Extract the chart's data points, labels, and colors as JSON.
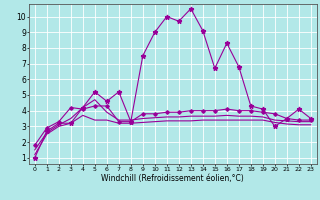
{
  "bg_color": "#b2e8e8",
  "grid_color": "#ffffff",
  "line_color": "#990099",
  "xlim": [
    -0.5,
    23.5
  ],
  "ylim": [
    0.6,
    10.8
  ],
  "xticks": [
    0,
    1,
    2,
    3,
    4,
    5,
    6,
    7,
    8,
    9,
    10,
    11,
    12,
    13,
    14,
    15,
    16,
    17,
    18,
    19,
    20,
    21,
    22,
    23
  ],
  "yticks": [
    1,
    2,
    3,
    4,
    5,
    6,
    7,
    8,
    9,
    10
  ],
  "xlabel": "Windchill (Refroidissement éolien,°C)",
  "line1_x": [
    0,
    1,
    2,
    3,
    4,
    5,
    6,
    7,
    8,
    9,
    10,
    11,
    12,
    13,
    14,
    15,
    16,
    17,
    18,
    19,
    20,
    21,
    22,
    23
  ],
  "line1_y": [
    1.0,
    2.7,
    3.2,
    3.2,
    4.2,
    5.2,
    4.6,
    5.2,
    3.3,
    7.5,
    9.0,
    10.0,
    9.7,
    10.5,
    9.1,
    6.7,
    8.3,
    6.8,
    4.3,
    4.1,
    3.0,
    3.5,
    4.1,
    3.5
  ],
  "line2_x": [
    0,
    1,
    2,
    3,
    4,
    5,
    6,
    7,
    8,
    9,
    10,
    11,
    12,
    13,
    14,
    15,
    16,
    17,
    18,
    19,
    20,
    21,
    22,
    23
  ],
  "line2_y": [
    1.8,
    2.9,
    3.3,
    4.2,
    4.1,
    4.3,
    4.3,
    3.3,
    3.3,
    3.8,
    3.8,
    3.9,
    3.9,
    4.0,
    4.0,
    4.0,
    4.1,
    4.0,
    4.0,
    3.9,
    3.8,
    3.5,
    3.4,
    3.4
  ],
  "line3_x": [
    0,
    1,
    2,
    3,
    4,
    5,
    6,
    7,
    8,
    9,
    10,
    11,
    12,
    13,
    14,
    15,
    16,
    17,
    18,
    19,
    20,
    21,
    22,
    23
  ],
  "line3_y": [
    1.5,
    2.6,
    3.1,
    3.5,
    4.2,
    4.7,
    3.9,
    3.4,
    3.4,
    3.5,
    3.55,
    3.6,
    3.6,
    3.65,
    3.65,
    3.65,
    3.7,
    3.65,
    3.65,
    3.6,
    3.4,
    3.35,
    3.3,
    3.3
  ],
  "line4_x": [
    0,
    1,
    2,
    3,
    4,
    5,
    6,
    7,
    8,
    9,
    10,
    11,
    12,
    13,
    14,
    15,
    16,
    17,
    18,
    19,
    20,
    21,
    22,
    23
  ],
  "line4_y": [
    1.2,
    2.5,
    3.0,
    3.2,
    3.7,
    3.4,
    3.4,
    3.2,
    3.2,
    3.25,
    3.3,
    3.35,
    3.35,
    3.35,
    3.4,
    3.4,
    3.4,
    3.4,
    3.4,
    3.4,
    3.25,
    3.15,
    3.1,
    3.1
  ]
}
